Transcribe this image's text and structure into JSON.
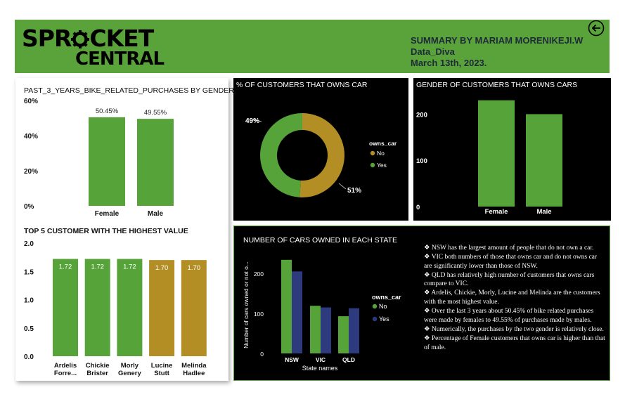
{
  "header": {
    "logo_line1": "SPR",
    "logo_line1b": "CKET",
    "logo_line2": "CENTRAL",
    "summary_line1": "SUMMARY BY MARIAM MORENIKEJI.W",
    "summary_line2": "Data_Diva",
    "summary_line3": "March 13th, 2023.",
    "back_icon": "back-arrow-icon",
    "accent_color": "#5aa33a"
  },
  "colors": {
    "green": "#56a33a",
    "gold": "#b28e24",
    "navy": "#2d3a7e"
  },
  "notes": [
    "❖  NSW has the largest amount of people that do not own a car.",
    "❖  VIC both numbers of those that owns car and do not owns car are significantly lower than those of NSW.",
    "❖  QLD has relatively high number of customers that owns cars compare to VIC.",
    "❖  Ardelis, Chickie, Morly, Lucine and Melinda are the customers with the most highest value.",
    "❖  Over the last 3 years about 50.45% of bike related purchases were made by females to 49.55% of purchases made by males.",
    "❖  Numerically, the purchases by the two gender is relatively close.",
    "❖  Percentage of Female customers that owns car is higher than that of male."
  ],
  "chart_data": [
    {
      "id": "gender_purchases",
      "type": "bar",
      "title": "PAST_3_YEARS_BIKE_RELATED_PURCHASES BY GENDER",
      "categories": [
        "Female",
        "Male"
      ],
      "values": [
        50.45,
        49.55
      ],
      "data_labels": [
        "50.45%",
        "49.55%"
      ],
      "yticks": [
        "0%",
        "20%",
        "40%",
        "60%"
      ],
      "ylim": [
        0,
        60
      ],
      "grid": false
    },
    {
      "id": "top_customers",
      "type": "bar",
      "title": "TOP 5 CUSTOMER WITH THE HIGHEST VALUE",
      "categories": [
        [
          "Ardelis",
          "Forre..."
        ],
        [
          "Chickie",
          "Brister"
        ],
        [
          "Morly",
          "Genery"
        ],
        [
          "Lucine",
          "Stutt"
        ],
        [
          "Melinda",
          "Hadlee"
        ]
      ],
      "values": [
        1.72,
        1.72,
        1.72,
        1.7,
        1.7
      ],
      "data_labels": [
        "1.72",
        "1.72",
        "1.72",
        "1.70",
        "1.70"
      ],
      "bar_colors": [
        "green",
        "green",
        "green",
        "gold",
        "gold"
      ],
      "yticks": [
        "0.0",
        "0.5",
        "1.0",
        "1.5",
        "2.0"
      ],
      "ylim": [
        0,
        2.0
      ],
      "grid": false
    },
    {
      "id": "owns_car_pct",
      "type": "pie",
      "title": "% OF CUSTOMERS THAT OWNS CAR",
      "legend_title": "owns_car",
      "legend_position": "right",
      "slices": [
        {
          "name": "No",
          "value": 51,
          "label": "51%",
          "color": "gold"
        },
        {
          "name": "Yes",
          "value": 49,
          "label": "49%",
          "color": "green"
        }
      ]
    },
    {
      "id": "gender_owns_cars",
      "type": "bar",
      "title": "GENDER OF CUSTOMERS THAT OWNS CARS",
      "categories": [
        "Female",
        "Male"
      ],
      "values": [
        230,
        200
      ],
      "yticks": [
        "0",
        "100",
        "200"
      ],
      "ylim": [
        0,
        260
      ],
      "grid": false
    },
    {
      "id": "cars_by_state",
      "type": "bar",
      "title": "NUMBER OF CARS OWNED IN EACH STATE",
      "xlabel": "State names",
      "ylabel": "Number of cars owned or not o...",
      "categories": [
        "NSW",
        "VIC",
        "QLD"
      ],
      "legend_title": "owns_car",
      "legend_position": "right",
      "yticks": [
        "0",
        "100",
        "200"
      ],
      "ylim": [
        0,
        260
      ],
      "series": [
        {
          "name": "No",
          "color": "green",
          "values": [
            234,
            119,
            93
          ]
        },
        {
          "name": "Yes",
          "color": "navy",
          "values": [
            205,
            115,
            113
          ]
        }
      ]
    }
  ]
}
